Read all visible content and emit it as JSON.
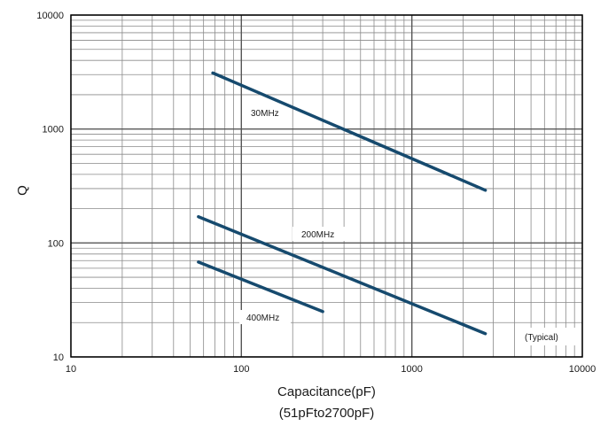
{
  "chart_data": {
    "type": "line",
    "x_scale": "log",
    "y_scale": "log",
    "xlim": [
      10,
      10000
    ],
    "ylim": [
      10,
      10000
    ],
    "grid": true,
    "xlabel": "Capacitance(pF)",
    "xlabel_sub": "(51pFto2700pF)",
    "ylabel": "Q",
    "x_ticks": [
      10,
      100,
      1000,
      10000
    ],
    "x_tick_labels": [
      "10",
      "100",
      "1000",
      "10000"
    ],
    "y_ticks": [
      10,
      100,
      1000,
      10000
    ],
    "y_tick_labels": [
      "10",
      "100",
      "1000",
      "10000"
    ],
    "annotation": "(Typical)",
    "line_color": "#164a6e",
    "series": [
      {
        "name": "30MHz",
        "x": [
          68,
          2700
        ],
        "y": [
          3100,
          290
        ]
      },
      {
        "name": "200MHz",
        "x": [
          56,
          2700
        ],
        "y": [
          170,
          16
        ]
      },
      {
        "name": "400MHz",
        "x": [
          56,
          300
        ],
        "y": [
          68,
          25
        ]
      }
    ]
  }
}
